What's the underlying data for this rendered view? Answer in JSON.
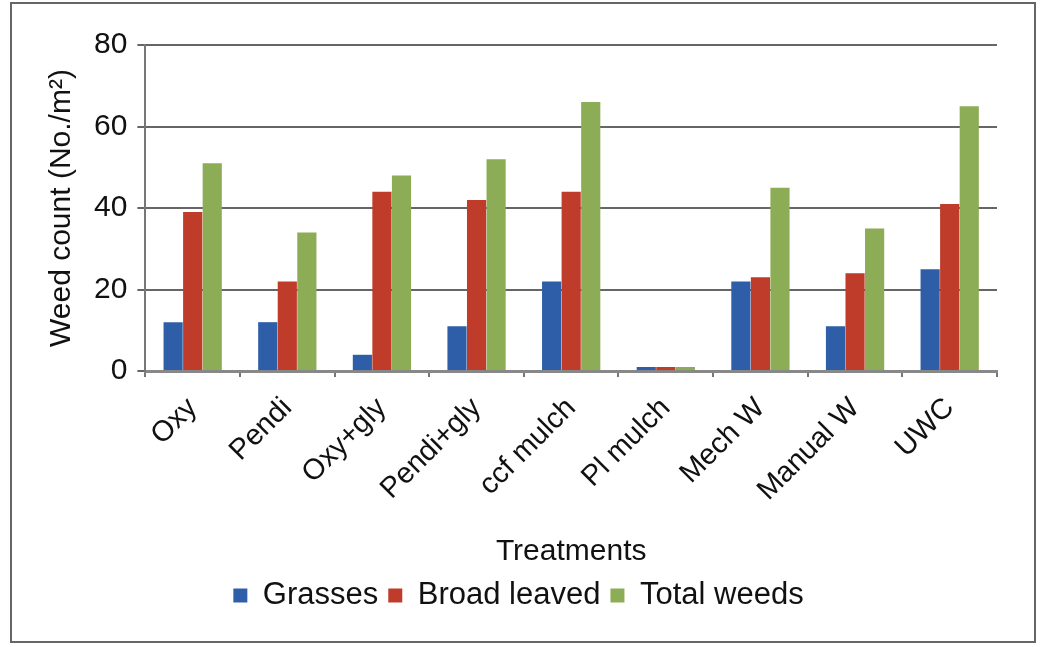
{
  "chart_data": {
    "type": "bar",
    "xlabel": "Treatments",
    "ylabel": "Weed count (No./m²)",
    "categories": [
      "Oxy",
      "Pendi",
      "Oxy+gly",
      "Pendi+gly",
      "ccf mulch",
      "Pl mulch",
      "Mech W",
      "Manual W",
      "UWC"
    ],
    "series": [
      {
        "name": "Grasses",
        "color": "#2f5ea8",
        "values": [
          12,
          12,
          4,
          11,
          22,
          1,
          22,
          11,
          25
        ]
      },
      {
        "name": "Broad leaved",
        "color": "#bf3b2a",
        "values": [
          39,
          22,
          44,
          42,
          44,
          1,
          23,
          24,
          41
        ]
      },
      {
        "name": "Total weeds",
        "color": "#8cac56",
        "values": [
          51,
          34,
          48,
          52,
          66,
          1,
          45,
          35,
          65
        ]
      }
    ],
    "ylim": [
      0,
      80
    ],
    "yticks": [
      0,
      20,
      40,
      60,
      80
    ],
    "grid": "y",
    "legend": "bottom"
  }
}
